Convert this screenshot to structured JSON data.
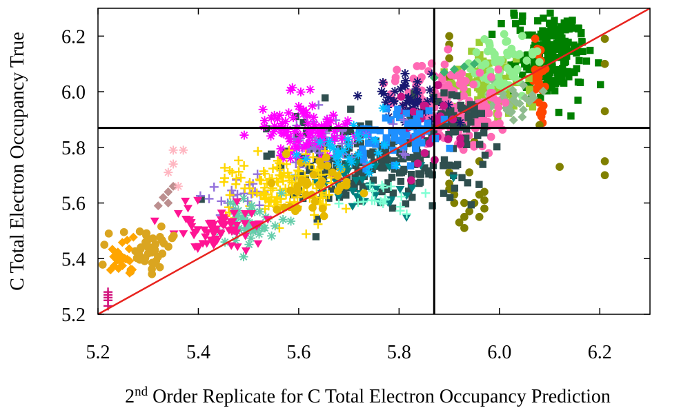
{
  "chart_data": {
    "type": "scatter",
    "xlabel_prefix": "2",
    "xlabel_sup": "nd",
    "xlabel_rest": " Order Replicate for C Total Electron Occupancy Prediction",
    "ylabel": "C Total Electron Occupancy True",
    "xlim": [
      5.2,
      6.3
    ],
    "ylim": [
      5.2,
      6.3
    ],
    "xticks": [
      "5.2",
      "5.4",
      "5.6",
      "5.8",
      "6.0",
      "6.2"
    ],
    "yticks": [
      "5.2",
      "5.4",
      "5.6",
      "5.8",
      "6.0",
      "6.2"
    ],
    "grid": false,
    "legend": "none",
    "threshold_x": 5.87,
    "threshold_y": 5.87,
    "identity_line": {
      "from": [
        5.2,
        5.2
      ],
      "to": [
        6.3,
        6.3
      ],
      "color": "#e8231e"
    },
    "series": [
      {
        "color": "#008000",
        "marker": "square",
        "clusters": [
          {
            "cx": 6.1,
            "cy": 6.12,
            "sx": 0.035,
            "sy": 0.07,
            "n": 160
          },
          {
            "cx": 6.13,
            "cy": 6.22,
            "sx": 0.02,
            "sy": 0.03,
            "n": 30
          }
        ]
      },
      {
        "color": "#ff4500",
        "marker": "circle",
        "clusters": [
          {
            "cx": 6.08,
            "cy": 6.05,
            "sx": 0.005,
            "sy": 0.07,
            "n": 30
          }
        ]
      },
      {
        "color": "#808000",
        "marker": "circle",
        "points": [
          [
            5.9,
            6.2
          ],
          [
            5.9,
            6.17
          ],
          [
            5.9,
            6.12
          ],
          [
            5.9,
            6.05
          ],
          [
            6.21,
            6.19
          ],
          [
            6.21,
            6.1
          ],
          [
            6.21,
            5.93
          ],
          [
            6.21,
            5.75
          ],
          [
            6.21,
            5.7
          ],
          [
            6.12,
            5.73
          ],
          [
            6.08,
            5.88
          ],
          [
            5.95,
            5.82
          ],
          [
            5.96,
            5.75
          ],
          [
            5.94,
            5.71
          ],
          [
            5.9,
            5.71
          ],
          [
            5.9,
            5.67
          ],
          [
            5.9,
            5.65
          ],
          [
            5.91,
            5.63
          ],
          [
            5.91,
            5.6
          ],
          [
            5.93,
            5.6
          ],
          [
            5.95,
            5.6
          ],
          [
            5.94,
            5.57
          ],
          [
            5.93,
            5.55
          ],
          [
            5.92,
            5.53
          ],
          [
            5.93,
            5.51
          ],
          [
            5.97,
            5.64
          ],
          [
            5.96,
            5.63
          ],
          [
            5.97,
            5.61
          ],
          [
            5.97,
            5.58
          ],
          [
            5.96,
            5.55
          ]
        ]
      },
      {
        "color": "#9acd32",
        "marker": "square",
        "clusters": [
          {
            "cx": 5.98,
            "cy": 6.02,
            "sx": 0.04,
            "sy": 0.06,
            "n": 90
          }
        ]
      },
      {
        "color": "#90ee90",
        "marker": "circle",
        "clusters": [
          {
            "cx": 6.0,
            "cy": 6.1,
            "sx": 0.04,
            "sy": 0.05,
            "n": 60
          }
        ]
      },
      {
        "color": "#8fbc8f",
        "marker": "diamond",
        "clusters": [
          {
            "cx": 6.02,
            "cy": 5.98,
            "sx": 0.03,
            "sy": 0.04,
            "n": 30
          }
        ]
      },
      {
        "color": "#ff69b4",
        "marker": "circle",
        "clusters": [
          {
            "cx": 5.93,
            "cy": 5.94,
            "sx": 0.04,
            "sy": 0.06,
            "n": 130
          },
          {
            "cx": 5.83,
            "cy": 6.02,
            "sx": 0.03,
            "sy": 0.04,
            "n": 25
          }
        ]
      },
      {
        "color": "#2f4f4f",
        "marker": "square",
        "clusters": [
          {
            "cx": 5.74,
            "cy": 5.74,
            "sx": 0.09,
            "sy": 0.07,
            "n": 200
          },
          {
            "cx": 5.9,
            "cy": 5.9,
            "sx": 0.04,
            "sy": 0.05,
            "n": 60
          }
        ]
      },
      {
        "color": "#008080",
        "marker": "triangle-down",
        "clusters": [
          {
            "cx": 5.73,
            "cy": 5.66,
            "sx": 0.06,
            "sy": 0.05,
            "n": 40
          }
        ]
      },
      {
        "color": "#7fffd4",
        "marker": "plus",
        "clusters": [
          {
            "cx": 5.77,
            "cy": 5.62,
            "sx": 0.04,
            "sy": 0.04,
            "n": 20
          }
        ]
      },
      {
        "color": "#191970",
        "marker": "star",
        "clusters": [
          {
            "cx": 5.83,
            "cy": 5.97,
            "sx": 0.04,
            "sy": 0.05,
            "n": 50
          }
        ]
      },
      {
        "color": "#c71585",
        "marker": "circle",
        "clusters": [
          {
            "cx": 5.85,
            "cy": 5.9,
            "sx": 0.03,
            "sy": 0.06,
            "n": 30
          }
        ]
      },
      {
        "color": "#1e90ff",
        "marker": "square",
        "clusters": [
          {
            "cx": 5.8,
            "cy": 5.85,
            "sx": 0.04,
            "sy": 0.05,
            "n": 60
          }
        ]
      },
      {
        "color": "#9370db",
        "marker": "plus",
        "clusters": [
          {
            "cx": 5.66,
            "cy": 5.82,
            "sx": 0.05,
            "sy": 0.05,
            "n": 60
          },
          {
            "cx": 5.48,
            "cy": 5.62,
            "sx": 0.03,
            "sy": 0.04,
            "n": 25
          }
        ]
      },
      {
        "color": "#ff00ff",
        "marker": "star",
        "clusters": [
          {
            "cx": 5.61,
            "cy": 5.86,
            "sx": 0.04,
            "sy": 0.05,
            "n": 90
          }
        ]
      },
      {
        "color": "#ffd700",
        "marker": "plus",
        "clusters": [
          {
            "cx": 5.57,
            "cy": 5.66,
            "sx": 0.06,
            "sy": 0.06,
            "n": 140
          }
        ]
      },
      {
        "color": "#e6b800",
        "marker": "circle",
        "clusters": [
          {
            "cx": 5.63,
            "cy": 5.68,
            "sx": 0.04,
            "sy": 0.06,
            "n": 40
          }
        ]
      },
      {
        "color": "#66cdaa",
        "marker": "star",
        "clusters": [
          {
            "cx": 5.5,
            "cy": 5.53,
            "sx": 0.03,
            "sy": 0.04,
            "n": 50
          }
        ]
      },
      {
        "color": "#ff1493",
        "marker": "triangle-down",
        "clusters": [
          {
            "cx": 5.44,
            "cy": 5.51,
            "sx": 0.05,
            "sy": 0.04,
            "n": 70
          }
        ]
      },
      {
        "color": "#daa520",
        "marker": "circle",
        "clusters": [
          {
            "cx": 5.3,
            "cy": 5.43,
            "sx": 0.035,
            "sy": 0.04,
            "n": 45
          }
        ]
      },
      {
        "color": "#ffa500",
        "marker": "diamond",
        "clusters": [
          {
            "cx": 5.25,
            "cy": 5.4,
            "sx": 0.012,
            "sy": 0.03,
            "n": 20
          }
        ]
      },
      {
        "color": "#bc8f8f",
        "marker": "diamond",
        "points": [
          [
            5.33,
            5.62
          ],
          [
            5.34,
            5.64
          ],
          [
            5.35,
            5.66
          ],
          [
            5.34,
            5.6
          ],
          [
            5.32,
            5.59
          ]
        ]
      },
      {
        "color": "#ffb6c1",
        "marker": "star",
        "points": [
          [
            5.35,
            5.79
          ],
          [
            5.37,
            5.79
          ],
          [
            5.35,
            5.74
          ],
          [
            5.36,
            5.66
          ],
          [
            5.34,
            5.71
          ]
        ]
      },
      {
        "color": "#d2147d",
        "marker": "plus",
        "points": [
          [
            5.22,
            5.28
          ],
          [
            5.22,
            5.26
          ],
          [
            5.22,
            5.25
          ],
          [
            5.22,
            5.23
          ],
          [
            5.22,
            5.27
          ]
        ]
      },
      {
        "color": "#00bfff",
        "marker": "star",
        "clusters": [
          {
            "cx": 5.7,
            "cy": 5.78,
            "sx": 0.04,
            "sy": 0.04,
            "n": 30
          }
        ]
      },
      {
        "color": "#3cb371",
        "marker": "diamond",
        "points": [
          [
            5.91,
            6.08
          ],
          [
            5.93,
            6.09
          ],
          [
            5.89,
            6.07
          ],
          [
            5.95,
            6.1
          ],
          [
            5.87,
            6.05
          ]
        ]
      }
    ]
  }
}
